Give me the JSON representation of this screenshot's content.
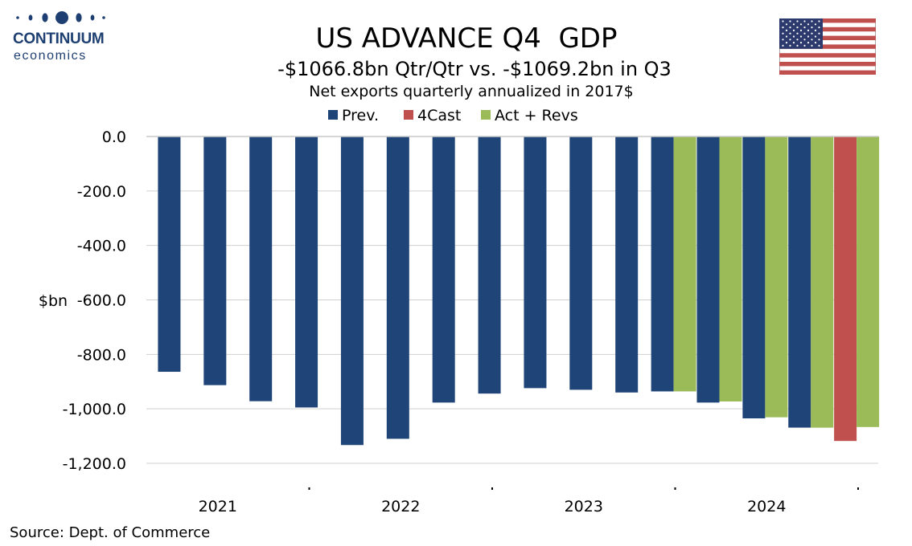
{
  "brand": {
    "name": "CONTINUUM",
    "sub": "economics"
  },
  "title": "US ADVANCE Q4  GDP",
  "subtitle": "-$1066.8bn Qtr/Qtr vs. -$1069.2bn in Q3",
  "source": "Source: Dept. of Commerce",
  "flag": "us-flag-icon",
  "colors": {
    "prev": "#1f4478",
    "fcast": "#c0504d",
    "act": "#9bbb59",
    "brand": "#1e3f72"
  },
  "chart_data": {
    "type": "bar",
    "subtitle": "Net exports quarterly annualized in 2017$",
    "ylabel": "$bn",
    "ylim": [
      -1200,
      0
    ],
    "yticks": [
      0,
      -200,
      -400,
      -600,
      -800,
      -1000,
      -1200
    ],
    "ytick_labels": [
      "0.0",
      "-200.0",
      "-400.0",
      "-600.0",
      "-800.0",
      "-1,000.0",
      "-1,200.0"
    ],
    "year_labels": [
      "2021",
      "2022",
      "2023",
      "2024"
    ],
    "legend": {
      "placement": "top-center",
      "entries": [
        "Prev.",
        "4Cast",
        "Act + Revs"
      ]
    },
    "grid": true,
    "categories": [
      "2021 Q1",
      "2021 Q2",
      "2021 Q3",
      "2021 Q4",
      "2022 Q1",
      "2022 Q2",
      "2022 Q3",
      "2022 Q4",
      "2023 Q1",
      "2023 Q2",
      "2023 Q3",
      "2023 Q4",
      "2024 Q1",
      "2024 Q2",
      "2024 Q3",
      "2024 Q4"
    ],
    "series": [
      {
        "name": "Prev.",
        "values": [
          -864,
          -913,
          -972,
          -995,
          -1133,
          -1110,
          -977,
          -944,
          -924,
          -930,
          -940,
          -936,
          -977,
          -1035,
          -1069,
          null
        ]
      },
      {
        "name": "4Cast",
        "values": [
          null,
          null,
          null,
          null,
          null,
          null,
          null,
          null,
          null,
          null,
          null,
          null,
          null,
          null,
          null,
          -1118
        ]
      },
      {
        "name": "Act + Revs",
        "values": [
          null,
          null,
          null,
          null,
          null,
          null,
          null,
          null,
          null,
          null,
          null,
          -936,
          -973,
          -1031,
          -1069.2,
          -1066.8
        ]
      }
    ]
  }
}
